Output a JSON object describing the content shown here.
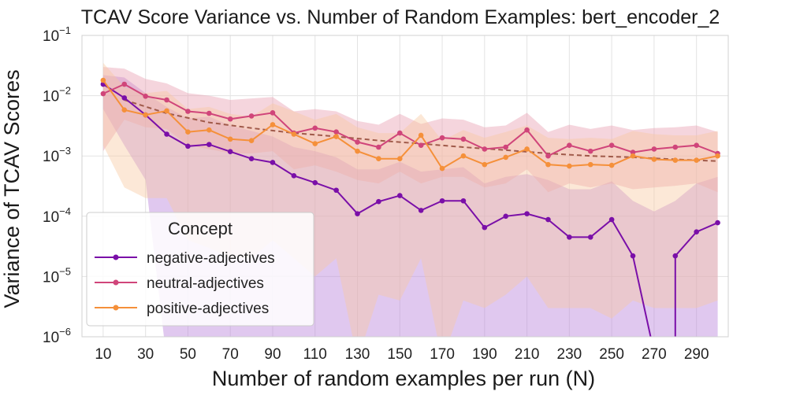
{
  "chart_data": {
    "type": "line",
    "title": "TCAV Score Variance vs. Number of Random Examples: bert_encoder_2",
    "xlabel": "Number of random examples per run (N)",
    "ylabel": "Variance of TCAV Scores",
    "yscale": "log",
    "ylim": [
      1e-06,
      0.1
    ],
    "xlim": [
      0,
      305
    ],
    "grid": true,
    "x": [
      10,
      20,
      30,
      40,
      50,
      60,
      70,
      80,
      90,
      100,
      110,
      120,
      130,
      140,
      150,
      160,
      170,
      180,
      190,
      200,
      210,
      220,
      230,
      240,
      250,
      260,
      270,
      280,
      290,
      300
    ],
    "x_tick_values": [
      10,
      30,
      50,
      70,
      90,
      110,
      130,
      150,
      170,
      190,
      210,
      230,
      250,
      270,
      290
    ],
    "x_tick_labels": [
      "10",
      "30",
      "50",
      "70",
      "90",
      "110",
      "130",
      "150",
      "170",
      "190",
      "210",
      "230",
      "250",
      "270",
      "290"
    ],
    "y_ticks": [
      {
        "value": 0.1,
        "base": "10",
        "exp": "−1"
      },
      {
        "value": 0.01,
        "base": "10",
        "exp": "−2"
      },
      {
        "value": 0.001,
        "base": "10",
        "exp": "−3"
      },
      {
        "value": 0.0001,
        "base": "10",
        "exp": "−4"
      },
      {
        "value": 1e-05,
        "base": "10",
        "exp": "−5"
      },
      {
        "value": 1e-06,
        "base": "10",
        "exp": "−6"
      }
    ],
    "series": [
      {
        "name": "negative-adjectives",
        "color": "#7a0fa8",
        "band_color": "#b57bd9",
        "values": [
          0.0155,
          0.0092,
          0.0048,
          0.0023,
          0.00145,
          0.00155,
          0.00118,
          0.0009,
          0.00078,
          0.00047,
          0.00036,
          0.00027,
          0.00011,
          0.000175,
          0.00022,
          0.000125,
          0.00018,
          0.00018,
          6.5e-05,
          0.0001,
          0.00011,
          8.8e-05,
          4.5e-05,
          4.5e-05,
          8.8e-05,
          2.2e-05,
          null,
          2.2e-05,
          5.5e-05,
          7.8e-05
        ],
        "band_upper": [
          0.022,
          0.02,
          0.011,
          0.0065,
          0.0042,
          0.0045,
          0.0032,
          0.0026,
          0.0021,
          0.0014,
          0.0012,
          0.00095,
          0.0006,
          0.0006,
          0.0008,
          0.00055,
          0.0006,
          0.00065,
          0.00035,
          0.00045,
          0.0005,
          0.0004,
          0.00028,
          0.00028,
          0.00038,
          0.00018,
          0.00012,
          0.00018,
          0.00035,
          0.00045
        ],
        "band_lower": [
          0.006,
          0.0015,
          0.0004,
          null,
          null,
          null,
          null,
          null,
          null,
          null,
          null,
          null,
          null,
          null,
          null,
          null,
          null,
          null,
          null,
          null,
          null,
          null,
          null,
          null,
          null,
          null,
          null,
          null,
          null,
          null
        ]
      },
      {
        "name": "neutral-adjectives",
        "color": "#d0457a",
        "band_color": "#e89aae",
        "values": [
          0.0108,
          0.0155,
          0.0098,
          0.0085,
          0.0055,
          0.0051,
          0.0041,
          0.0046,
          0.0052,
          0.0024,
          0.0029,
          0.0025,
          0.0017,
          0.0014,
          0.0024,
          0.0015,
          0.002,
          0.0019,
          0.0013,
          0.0014,
          0.0027,
          0.001,
          0.0015,
          0.0012,
          0.0015,
          0.00115,
          0.0013,
          0.0014,
          0.0015,
          0.0011
        ],
        "band_upper": [
          0.03,
          0.028,
          0.019,
          0.016,
          0.011,
          0.01,
          0.0085,
          0.009,
          0.0095,
          0.0055,
          0.006,
          0.0055,
          0.0038,
          0.0033,
          0.005,
          0.0034,
          0.0042,
          0.004,
          0.003,
          0.0032,
          0.0052,
          0.0025,
          0.0033,
          0.0028,
          0.0032,
          0.0027,
          0.0029,
          0.003,
          0.0032,
          0.0025
        ],
        "band_lower": [
          0.0012,
          0.004,
          0.003,
          0.0028,
          0.0015,
          0.0013,
          0.0011,
          0.0011,
          0.0012,
          0.0006,
          0.0007,
          0.00055,
          0.0004,
          0.00035,
          0.00055,
          0.00035,
          0.00045,
          0.00045,
          0.0003,
          0.00035,
          0.0006,
          0.00025,
          0.00035,
          0.0003,
          0.00035,
          0.00028,
          0.0003,
          0.00032,
          0.00035,
          0.00025
        ]
      },
      {
        "name": "positive-adjectives",
        "color": "#f5903a",
        "band_color": "#f8c8a0",
        "values": [
          0.018,
          0.0058,
          0.0048,
          0.0056,
          0.0025,
          0.0027,
          0.0019,
          0.0018,
          0.0033,
          0.0023,
          0.0016,
          0.0021,
          0.0012,
          0.0009,
          0.0009,
          0.0022,
          0.00062,
          0.001,
          0.00072,
          0.00095,
          0.0013,
          0.00072,
          0.00068,
          0.00072,
          0.0007,
          0.001,
          0.00088,
          0.00085,
          0.00085,
          0.001
        ],
        "band_upper": [
          0.035,
          0.014,
          0.011,
          0.012,
          0.006,
          0.0065,
          0.005,
          0.0045,
          0.0075,
          0.0055,
          0.004,
          0.005,
          0.003,
          0.0024,
          0.0024,
          0.005,
          0.0018,
          0.0027,
          0.002,
          0.0025,
          0.0032,
          0.002,
          0.0019,
          0.002,
          0.0019,
          0.0026,
          0.0023,
          0.0022,
          0.0022,
          0.0026
        ],
        "band_lower": [
          0.0015,
          0.0003,
          0.0002,
          0.0002,
          4e-05,
          3e-05,
          2e-05,
          2e-05,
          4e-05,
          2e-05,
          1e-05,
          2e-05,
          null,
          5e-06,
          4e-06,
          2e-05,
          null,
          4e-06,
          3e-06,
          5e-06,
          1e-05,
          3e-06,
          3e-06,
          3e-06,
          2e-06,
          4e-06,
          3e-06,
          3e-06,
          3e-06,
          4e-06
        ]
      }
    ],
    "trend": {
      "name": "trend",
      "color": "#a05a4a",
      "style": "dashed",
      "x": [
        20,
        40,
        60,
        80,
        100,
        120,
        140,
        160,
        180,
        200,
        220,
        240,
        260,
        280,
        300
      ],
      "values": [
        0.0085,
        0.0051,
        0.0036,
        0.0029,
        0.0024,
        0.0021,
        0.0018,
        0.0016,
        0.0014,
        0.00125,
        0.0011,
        0.001,
        0.00095,
        0.00088,
        0.00082
      ]
    },
    "legend": {
      "title": "Concept",
      "location": "lower-left",
      "entries": [
        "negative-adjectives",
        "neutral-adjectives",
        "positive-adjectives"
      ]
    }
  }
}
